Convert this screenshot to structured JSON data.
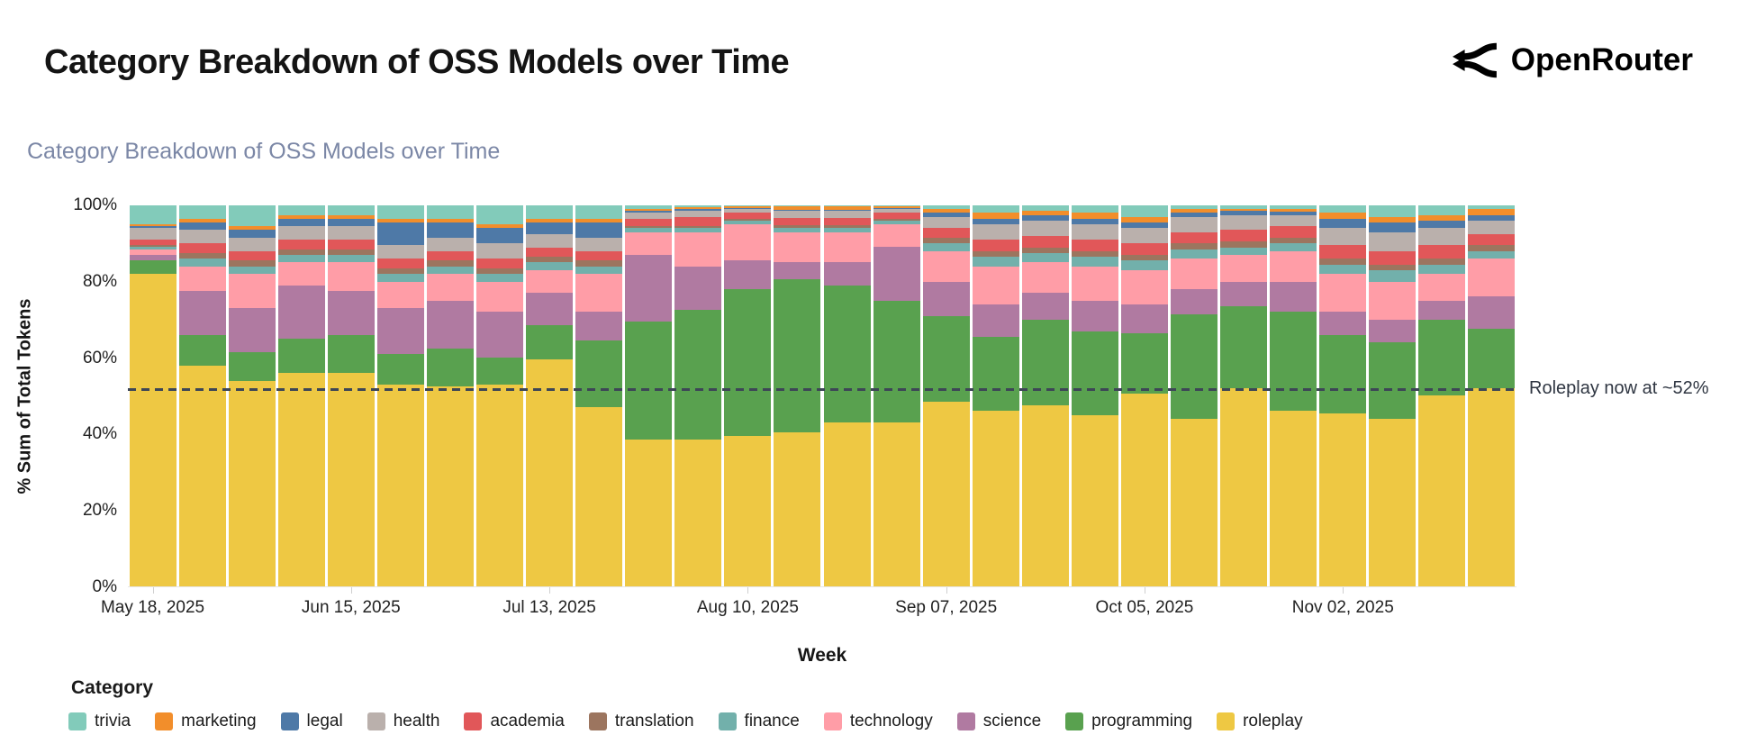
{
  "header": {
    "title": "Category Breakdown of OSS Models over Time",
    "brand": "OpenRouter"
  },
  "chart_data": {
    "type": "bar",
    "stacked": true,
    "title": "Category Breakdown of OSS Models over Time",
    "xlabel": "Week",
    "ylabel": "% Sum of Total Tokens",
    "ylim": [
      0,
      100
    ],
    "y_tick_values": [
      0,
      20,
      40,
      60,
      80,
      100
    ],
    "y_tick_labels": [
      "0%",
      "20%",
      "40%",
      "60%",
      "80%",
      "100%"
    ],
    "categories": [
      "May 18, 2025",
      "May 25, 2025",
      "Jun 01, 2025",
      "Jun 08, 2025",
      "Jun 15, 2025",
      "Jun 22, 2025",
      "Jun 29, 2025",
      "Jul 06, 2025",
      "Jul 13, 2025",
      "Jul 20, 2025",
      "Jul 27, 2025",
      "Aug 03, 2025",
      "Aug 10, 2025",
      "Aug 17, 2025",
      "Aug 24, 2025",
      "Aug 31, 2025",
      "Sep 07, 2025",
      "Sep 14, 2025",
      "Sep 21, 2025",
      "Sep 28, 2025",
      "Oct 05, 2025",
      "Oct 12, 2025",
      "Oct 19, 2025",
      "Oct 26, 2025",
      "Nov 02, 2025",
      "Nov 09, 2025",
      "Nov 16, 2025",
      "Nov 23, 2025"
    ],
    "x_tick_indices": [
      0,
      4,
      8,
      12,
      16,
      20,
      24
    ],
    "x_tick_labels": [
      "May 18, 2025",
      "Jun 15, 2025",
      "Jul 13, 2025",
      "Aug 10, 2025",
      "Sep 07, 2025",
      "Oct 05, 2025",
      "Nov 02, 2025"
    ],
    "series": [
      {
        "name": "roleplay",
        "color": "#eec843",
        "values": [
          82,
          58,
          54,
          56,
          56,
          53,
          52.5,
          53,
          59.5,
          47,
          38.5,
          38.5,
          39.5,
          40.5,
          43,
          43,
          48.5,
          46,
          47.5,
          45,
          50.5,
          44,
          52,
          46,
          45.5,
          44,
          50,
          52
        ]
      },
      {
        "name": "programming",
        "color": "#59a14f",
        "values": [
          3.5,
          8,
          7.5,
          9,
          10,
          8,
          10,
          7,
          9,
          17.5,
          31,
          34,
          38.5,
          40,
          36,
          32,
          22.5,
          19.5,
          22.5,
          22,
          16,
          27.5,
          21.5,
          26,
          20.5,
          20,
          20,
          15.5
        ]
      },
      {
        "name": "science",
        "color": "#b07aa1",
        "values": [
          1.5,
          11.5,
          11.5,
          14,
          11.5,
          12,
          12.5,
          12,
          8.5,
          7.5,
          17.5,
          11.5,
          7.5,
          4.5,
          6,
          14,
          9,
          8.5,
          7,
          8,
          7.5,
          6.5,
          6.5,
          8,
          6,
          6,
          5,
          8.5
        ]
      },
      {
        "name": "technology",
        "color": "#ff9da7",
        "values": [
          1.5,
          6.5,
          9,
          6,
          7.5,
          7,
          7,
          8,
          6,
          10,
          6,
          9,
          9.5,
          8,
          8,
          6,
          8,
          10,
          8,
          9,
          9,
          8,
          7,
          8,
          10,
          10,
          7,
          10
        ]
      },
      {
        "name": "finance",
        "color": "#72b0ab",
        "values": [
          0.5,
          2,
          2,
          2,
          2,
          2,
          2,
          2,
          2,
          2,
          1,
          1,
          1,
          1.2,
          1.2,
          1,
          2,
          2.5,
          2.5,
          2.5,
          2.5,
          2.5,
          2,
          2,
          2.5,
          3,
          2.5,
          2
        ]
      },
      {
        "name": "translation",
        "color": "#9c755f",
        "values": [
          0.5,
          1.5,
          1.5,
          1.5,
          1.5,
          1.5,
          1.5,
          1.5,
          1.5,
          1.5,
          0.5,
          0.5,
          0.5,
          0.5,
          0.5,
          0.5,
          1.5,
          1.5,
          1.5,
          1.5,
          1.5,
          1.5,
          1.5,
          1.5,
          1.5,
          1.5,
          1.5,
          1.5
        ]
      },
      {
        "name": "academia",
        "color": "#e15759",
        "values": [
          1.5,
          2.5,
          2.5,
          2.5,
          2.5,
          2.5,
          2.5,
          2.5,
          2.5,
          2.5,
          2,
          2.5,
          1.5,
          2,
          2,
          1.5,
          2.5,
          3,
          3,
          3,
          3,
          3,
          3,
          3,
          3.5,
          3.5,
          3.5,
          3
        ]
      },
      {
        "name": "health",
        "color": "#bab0ac",
        "values": [
          3,
          3.5,
          3.5,
          3.5,
          3.5,
          3.5,
          3.5,
          4,
          3.5,
          3.5,
          1.5,
          1.5,
          1,
          1.8,
          1.8,
          1,
          3,
          4,
          4,
          4,
          4,
          4,
          4,
          3,
          4.5,
          5,
          4.5,
          3.5
        ]
      },
      {
        "name": "legal",
        "color": "#4e79a7",
        "values": [
          0.5,
          2,
          2,
          2,
          2,
          6,
          4,
          4,
          3,
          4,
          0.5,
          0.5,
          0.3,
          0.4,
          0.4,
          0.3,
          1,
          1.5,
          1.5,
          1.5,
          1.5,
          1,
          1,
          0.8,
          2.5,
          2.5,
          2,
          1.5
        ]
      },
      {
        "name": "marketing",
        "color": "#f28e2b",
        "values": [
          0.5,
          1,
          1,
          1,
          1,
          1,
          1,
          1,
          1,
          1,
          0.5,
          0.5,
          0.4,
          0.8,
          0.8,
          0.4,
          1,
          1.5,
          1,
          1.5,
          1.5,
          1,
          0.5,
          0.7,
          1.5,
          1.5,
          1.5,
          1.5
        ]
      },
      {
        "name": "trivia",
        "color": "#82cbba",
        "values": [
          5,
          3.5,
          5.5,
          2.5,
          2.5,
          3.5,
          3.5,
          5,
          3.5,
          3.5,
          1,
          0.5,
          0.3,
          0.3,
          0.3,
          0.3,
          1,
          2,
          1.5,
          2,
          3,
          1,
          1,
          1,
          2,
          3,
          2.5,
          1
        ]
      }
    ],
    "legend": {
      "title": "Category",
      "position": "bottom",
      "order": [
        "trivia",
        "marketing",
        "legal",
        "health",
        "academia",
        "translation",
        "finance",
        "technology",
        "science",
        "programming",
        "roleplay"
      ]
    },
    "annotation": {
      "text": "Roleplay now at ~52%",
      "y": 52,
      "line_style": "dashed",
      "line_color": "#3d4656"
    },
    "grid": "vertical-at-ticks"
  }
}
